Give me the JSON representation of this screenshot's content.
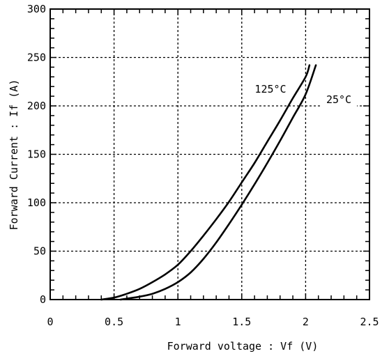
{
  "chart_data": {
    "type": "line",
    "title": "",
    "xlabel": "Forward voltage : Vf (V)",
    "ylabel": "Forward Current : If (A)",
    "xlim": [
      0,
      2.5
    ],
    "ylim": [
      0,
      300
    ],
    "x_ticks": [
      "0",
      "0.5",
      "1",
      "1.5",
      "2",
      "2.5"
    ],
    "y_ticks": [
      "0",
      "50",
      "100",
      "150",
      "200",
      "250",
      "300"
    ],
    "grid": true,
    "colors": {
      "line": "#000000",
      "background": "#ffffff"
    },
    "series": [
      {
        "name": "125°C",
        "x": [
          0.4,
          0.5,
          0.6,
          0.7,
          0.8,
          0.9,
          1.0,
          1.1,
          1.2,
          1.3,
          1.4,
          1.5,
          1.6,
          1.7,
          1.8,
          1.9,
          2.0,
          2.03
        ],
        "y": [
          0,
          2,
          6,
          11,
          18,
          26,
          36,
          50,
          66,
          83,
          101,
          121,
          141,
          163,
          185,
          208,
          230,
          242
        ]
      },
      {
        "name": "25°C",
        "x": [
          0.55,
          0.6,
          0.7,
          0.8,
          0.9,
          1.0,
          1.1,
          1.2,
          1.3,
          1.4,
          1.5,
          1.6,
          1.7,
          1.8,
          1.9,
          2.0,
          2.08
        ],
        "y": [
          0,
          1,
          3,
          6,
          11,
          18,
          28,
          42,
          59,
          78,
          98,
          119,
          141,
          164,
          188,
          212,
          242
        ]
      }
    ]
  }
}
